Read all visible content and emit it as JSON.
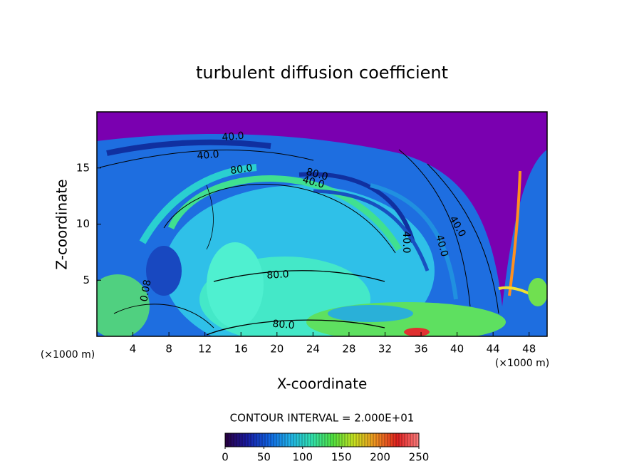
{
  "chart_data": {
    "type": "contour",
    "title": "turbulent diffusion coefficient",
    "x_label": "X-coordinate",
    "y_label": "Z-coordinate",
    "x_unit_label": "(×1000 m)",
    "y_unit_label": "(×1000 m)",
    "xlim": [
      0,
      50
    ],
    "xticks": [
      4,
      8,
      12,
      16,
      20,
      24,
      28,
      32,
      36,
      40,
      44,
      48
    ],
    "ylim": [
      0,
      20
    ],
    "yticks": [
      5,
      10,
      15
    ],
    "contour_labels": [
      "40.0",
      "40.0",
      "80.0",
      "80.0",
      "40.0",
      "80.0",
      "80.0",
      "0.08",
      "40.0",
      "40.0",
      "40.0"
    ],
    "contour_interval_text": "CONTOUR INTERVAL = 2.000E+01",
    "colorbar": {
      "clim": [
        0,
        250
      ],
      "ticks": [
        0,
        50,
        100,
        150,
        200,
        250
      ],
      "colors": [
        "#2a0040",
        "#1a1aa0",
        "#1060e0",
        "#20b0e8",
        "#30e0b0",
        "#50e040",
        "#c8e020",
        "#f09020",
        "#e02020",
        "#ff8080"
      ]
    }
  }
}
